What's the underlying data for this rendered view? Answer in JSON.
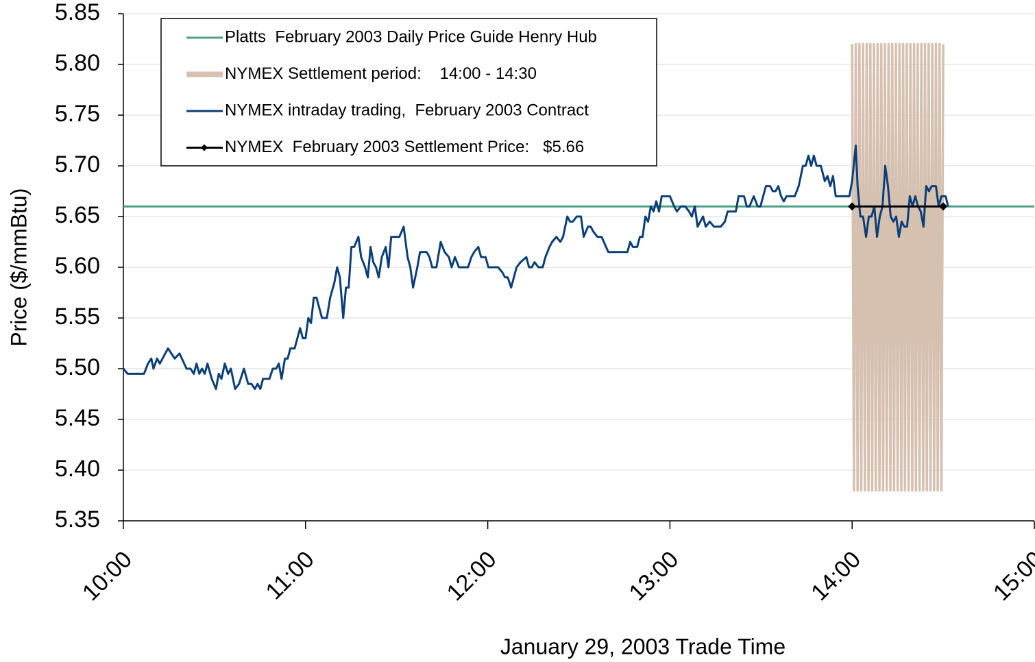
{
  "chart_data": {
    "type": "line",
    "x_label": "January 29, 2003 Trade Time",
    "y_label": "Price ($/mmBtu)",
    "xlim": [
      600,
      900
    ],
    "xticks": [
      {
        "value": 600,
        "label": "10:00"
      },
      {
        "value": 660,
        "label": "11:00"
      },
      {
        "value": 720,
        "label": "12:00"
      },
      {
        "value": 780,
        "label": "13:00"
      },
      {
        "value": 840,
        "label": "14:00"
      },
      {
        "value": 900,
        "label": "15:00"
      }
    ],
    "ylim": [
      5.35,
      5.85
    ],
    "yticks": [
      5.35,
      {
        "value": 5.4,
        "label": "5.40"
      },
      5.45,
      {
        "value": 5.5,
        "label": "5.50"
      },
      5.55,
      {
        "value": 5.6,
        "label": "5.60"
      },
      5.65,
      {
        "value": 5.7,
        "label": "5.70"
      },
      5.75,
      {
        "value": 5.8,
        "label": "5.80"
      },
      5.85
    ],
    "grid": true,
    "legend": "upper left",
    "series": [
      {
        "name": "Platts  February 2003 Daily Price Guide Henry Hub",
        "color": "#4f9f86",
        "x": [
          600,
          900
        ],
        "values": [
          5.66,
          5.66
        ]
      },
      {
        "name": "NYMEX Settlement period:    14:00 - 14:30",
        "color": "#d6c0b0",
        "x": [
          840.0,
          840.6,
          841.2,
          841.8,
          842.4,
          843.0,
          843.6,
          844.2,
          844.8,
          845.4,
          846.0,
          846.6,
          847.2,
          847.8,
          848.4,
          849.0,
          849.6,
          850.2,
          850.8,
          851.4,
          852.0,
          852.6,
          853.2,
          853.8,
          854.4,
          855.0,
          855.6,
          856.2,
          856.8,
          857.4,
          858.0,
          858.6,
          859.2,
          859.8,
          860.4,
          861.0,
          861.6,
          862.2,
          862.8,
          863.4,
          864.0,
          864.6,
          865.2,
          865.8,
          866.4,
          867.0,
          867.6,
          868.2,
          868.8,
          869.4,
          870.0
        ],
        "values": [
          5.82,
          5.38,
          5.82,
          5.38,
          5.82,
          5.38,
          5.82,
          5.38,
          5.82,
          5.38,
          5.82,
          5.38,
          5.82,
          5.38,
          5.82,
          5.38,
          5.82,
          5.38,
          5.82,
          5.38,
          5.82,
          5.38,
          5.82,
          5.38,
          5.82,
          5.38,
          5.82,
          5.38,
          5.82,
          5.38,
          5.82,
          5.38,
          5.82,
          5.38,
          5.82,
          5.38,
          5.82,
          5.38,
          5.82,
          5.38,
          5.82,
          5.38,
          5.82,
          5.38,
          5.82,
          5.38,
          5.82,
          5.38,
          5.82,
          5.38,
          5.82
        ]
      },
      {
        "name": "NYMEX intraday trading,  February 2003 Contract",
        "color": "#0b3f78",
        "x": [
          600.0,
          601.4,
          606.8,
          608.1,
          609.2,
          609.9,
          611.1,
          612.0,
          614.7,
          616.9,
          618.5,
          620.8,
          622.1,
          623.2,
          624.1,
          625.0,
          625.9,
          626.8,
          627.7,
          629.1,
          630.5,
          631.4,
          632.3,
          633.4,
          634.5,
          635.4,
          636.8,
          638.1,
          639.7,
          641.1,
          642.2,
          643.3,
          644.2,
          645.1,
          646.0,
          648.1,
          649.2,
          650.3,
          651.2,
          652.1,
          653.2,
          654.1,
          655.0,
          656.4,
          657.3,
          658.2,
          659.1,
          660.0,
          660.9,
          661.8,
          662.7,
          663.6,
          664.5,
          665.4,
          667.0,
          668.1,
          669.5,
          670.4,
          671.3,
          672.4,
          673.3,
          674.2,
          675.1,
          676.0,
          677.4,
          678.3,
          679.6,
          680.5,
          681.4,
          682.3,
          683.2,
          684.1,
          685.1,
          686.4,
          687.3,
          688.2,
          690.9,
          692.3,
          693.6,
          694.5,
          695.4,
          696.8,
          697.7,
          699.9,
          700.8,
          701.7,
          703.1,
          704.5,
          705.8,
          707.2,
          708.1,
          709.2,
          710.5,
          713.5,
          714.6,
          715.5,
          716.9,
          717.8,
          719.3,
          720.2,
          723.4,
          724.8,
          725.7,
          726.6,
          727.7,
          728.6,
          729.5,
          730.8,
          732.7,
          733.6,
          734.5,
          735.4,
          736.7,
          738.1,
          739.0,
          740.3,
          741.2,
          742.6,
          743.9,
          744.8,
          746.2,
          747.1,
          748.0,
          749.3,
          750.7,
          751.6,
          753.0,
          753.9,
          754.8,
          756.1,
          757.5,
          759.7,
          766.0,
          766.9,
          767.8,
          769.2,
          770.1,
          771.0,
          771.9,
          772.8,
          773.7,
          774.6,
          775.5,
          776.4,
          777.3,
          780.0,
          781.4,
          782.3,
          783.6,
          785.0,
          786.3,
          787.2,
          788.2,
          789.1,
          790.0,
          790.9,
          791.8,
          793.1,
          794.5,
          796.7,
          798.1,
          799.0,
          801.7,
          802.6,
          804.4,
          805.3,
          806.2,
          807.6,
          808.9,
          809.8,
          810.7,
          811.6,
          813.0,
          813.9,
          814.8,
          815.7,
          816.6,
          817.5,
          818.4,
          821.1,
          822.4,
          823.8,
          824.7,
          825.6,
          826.5,
          827.4,
          828.3,
          829.7,
          831.0,
          831.9,
          832.8,
          833.7,
          834.6,
          839.1,
          840.0,
          841.2,
          841.8,
          842.7,
          843.6,
          844.6,
          845.5,
          846.4,
          847.3,
          848.2,
          849.1,
          850.0,
          850.9,
          851.8,
          852.7,
          853.6,
          854.5,
          855.4,
          856.3,
          857.2,
          858.1,
          859.0,
          859.9,
          860.8,
          861.7,
          862.6,
          863.5,
          864.4,
          865.3,
          866.2,
          867.6,
          868.5,
          869.4,
          870.8,
          871.6
        ],
        "values": [
          5.5,
          5.495,
          5.495,
          5.505,
          5.51,
          5.5,
          5.51,
          5.505,
          5.52,
          5.51,
          5.515,
          5.5,
          5.5,
          5.495,
          5.505,
          5.495,
          5.5,
          5.495,
          5.505,
          5.49,
          5.48,
          5.495,
          5.49,
          5.505,
          5.495,
          5.5,
          5.48,
          5.485,
          5.5,
          5.485,
          5.485,
          5.48,
          5.485,
          5.48,
          5.49,
          5.49,
          5.5,
          5.5,
          5.505,
          5.49,
          5.51,
          5.51,
          5.52,
          5.52,
          5.53,
          5.54,
          5.53,
          5.53,
          5.55,
          5.545,
          5.57,
          5.57,
          5.56,
          5.55,
          5.55,
          5.57,
          5.585,
          5.6,
          5.59,
          5.55,
          5.58,
          5.58,
          5.62,
          5.62,
          5.63,
          5.61,
          5.6,
          5.59,
          5.62,
          5.605,
          5.6,
          5.59,
          5.61,
          5.62,
          5.6,
          5.63,
          5.63,
          5.64,
          5.61,
          5.6,
          5.58,
          5.6,
          5.615,
          5.615,
          5.61,
          5.6,
          5.6,
          5.625,
          5.615,
          5.61,
          5.6,
          5.61,
          5.6,
          5.6,
          5.61,
          5.615,
          5.62,
          5.61,
          5.61,
          5.6,
          5.6,
          5.595,
          5.59,
          5.59,
          5.58,
          5.59,
          5.6,
          5.605,
          5.61,
          5.6,
          5.6,
          5.605,
          5.6,
          5.6,
          5.61,
          5.62,
          5.625,
          5.63,
          5.625,
          5.63,
          5.65,
          5.645,
          5.645,
          5.65,
          5.65,
          5.63,
          5.64,
          5.64,
          5.635,
          5.63,
          5.63,
          5.615,
          5.615,
          5.625,
          5.62,
          5.62,
          5.63,
          5.63,
          5.65,
          5.645,
          5.66,
          5.655,
          5.665,
          5.655,
          5.67,
          5.67,
          5.66,
          5.655,
          5.66,
          5.66,
          5.655,
          5.65,
          5.66,
          5.64,
          5.645,
          5.65,
          5.64,
          5.645,
          5.64,
          5.64,
          5.645,
          5.655,
          5.655,
          5.67,
          5.67,
          5.66,
          5.66,
          5.67,
          5.66,
          5.66,
          5.67,
          5.68,
          5.68,
          5.675,
          5.675,
          5.68,
          5.67,
          5.665,
          5.67,
          5.67,
          5.68,
          5.7,
          5.7,
          5.71,
          5.7,
          5.71,
          5.7,
          5.7,
          5.685,
          5.69,
          5.68,
          5.69,
          5.67,
          5.67,
          5.685,
          5.72,
          5.68,
          5.65,
          5.65,
          5.63,
          5.65,
          5.65,
          5.66,
          5.63,
          5.65,
          5.66,
          5.7,
          5.68,
          5.65,
          5.645,
          5.65,
          5.63,
          5.645,
          5.64,
          5.64,
          5.67,
          5.66,
          5.67,
          5.66,
          5.655,
          5.64,
          5.68,
          5.675,
          5.68,
          5.68,
          5.66,
          5.67,
          5.67,
          5.66
        ]
      },
      {
        "name": "NYMEX  February 2003 Settlement Price:   $5.66",
        "color": "#000000",
        "marker": "diamond",
        "x": [
          840,
          870
        ],
        "values": [
          5.66,
          5.66
        ]
      }
    ]
  }
}
